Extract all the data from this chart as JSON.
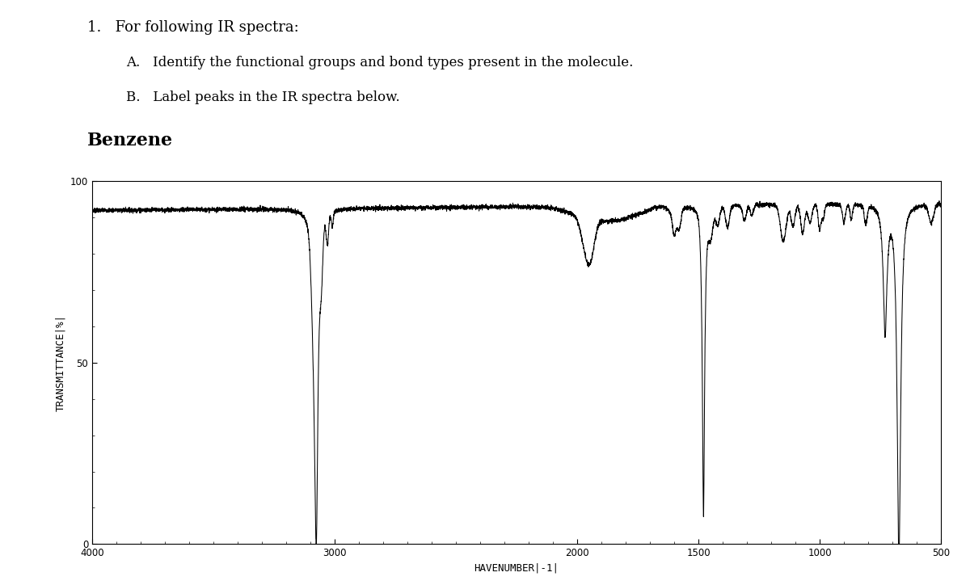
{
  "title_main": "1.   For following IR spectra:",
  "subtitle_A": "A.   Identify the functional groups and bond types present in the molecule.",
  "subtitle_B": "B.   Label peaks in the IR spectra below.",
  "molecule_name": "Benzene",
  "xlabel_text": "HAVENUMBER|-1|",
  "ylabel_text": "TRANSMITTANCE|%|",
  "xmin": 4000,
  "xmax": 500,
  "ymin": 0,
  "ymax": 100,
  "yticks": [
    0,
    50,
    100
  ],
  "xticks": [
    4000,
    3000,
    2000,
    1500,
    1000,
    500
  ],
  "background_color": "#ffffff",
  "line_color": "#000000",
  "text_color": "#000000",
  "title_fontsize": 13,
  "subtitle_fontsize": 12,
  "molecule_fontsize": 16,
  "axis_label_fontsize": 9
}
